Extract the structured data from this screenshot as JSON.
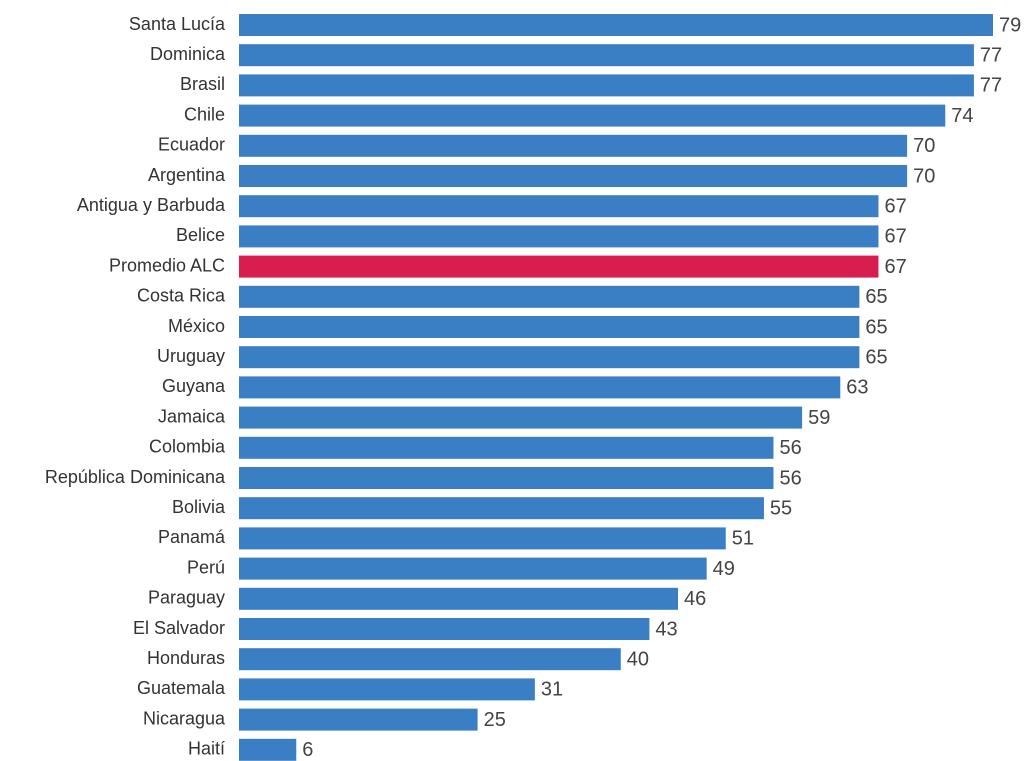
{
  "chart_data": {
    "type": "barh",
    "categories": [
      "Santa Lucía",
      "Dominica",
      "Brasil",
      "Chile",
      "Ecuador",
      "Argentina",
      "Antigua y Barbuda",
      "Belice",
      "Promedio ALC",
      "Costa Rica",
      "México",
      "Uruguay",
      "Guyana",
      "Jamaica",
      "Colombia",
      "República Dominicana",
      "Bolivia",
      "Panamá",
      "Perú",
      "Paraguay",
      "El Salvador",
      "Honduras",
      "Guatemala",
      "Nicaragua",
      "Haití"
    ],
    "values": [
      79,
      77,
      77,
      74,
      70,
      70,
      67,
      67,
      67,
      65,
      65,
      65,
      63,
      59,
      56,
      56,
      55,
      51,
      49,
      46,
      43,
      40,
      31,
      25,
      6
    ],
    "colors": [
      "#3a7fc4",
      "#3a7fc4",
      "#3a7fc4",
      "#3a7fc4",
      "#3a7fc4",
      "#3a7fc4",
      "#3a7fc4",
      "#3a7fc4",
      "#d81e4f",
      "#3a7fc4",
      "#3a7fc4",
      "#3a7fc4",
      "#3a7fc4",
      "#3a7fc4",
      "#3a7fc4",
      "#3a7fc4",
      "#3a7fc4",
      "#3a7fc4",
      "#3a7fc4",
      "#3a7fc4",
      "#3a7fc4",
      "#3a7fc4",
      "#3a7fc4",
      "#3a7fc4",
      "#3a7fc4"
    ]
  }
}
